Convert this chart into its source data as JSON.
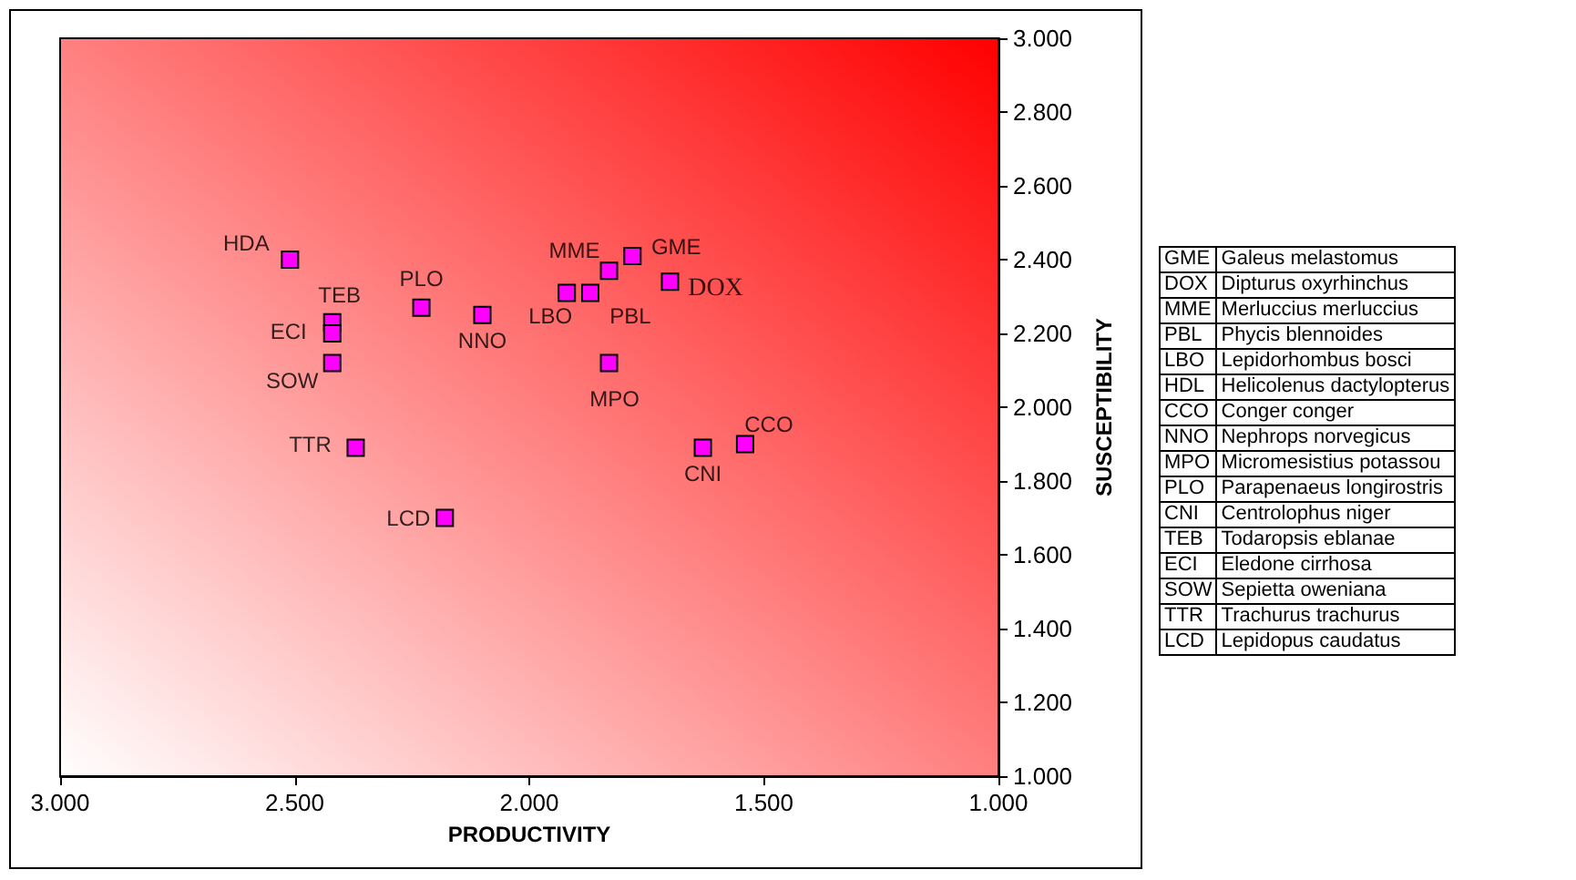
{
  "chart_data": [
    {
      "type": "scatter",
      "xlabel": "PRODUCTIVITY",
      "ylabel": "SUSCEPTIBILITY",
      "marker": "square",
      "x": [
        2.51,
        2.42,
        2.42,
        2.42,
        2.37,
        2.18,
        2.23,
        2.1,
        1.92,
        1.87,
        1.83,
        1.78,
        1.7,
        1.83,
        1.63,
        1.54
      ],
      "series": [
        {
          "color": "#ff00ff",
          "values": [
            2.4,
            2.23,
            2.2,
            2.12,
            1.89,
            1.7,
            2.27,
            2.25,
            2.31,
            2.31,
            2.37,
            2.41,
            2.34,
            2.12,
            1.89,
            1.9
          ]
        }
      ],
      "xlim": [
        3,
        1
      ],
      "ylim": [
        1,
        3
      ],
      "xticks": [
        {
          "value": 3,
          "label": "3.000"
        },
        {
          "value": 2.5,
          "label": "2.500"
        },
        {
          "value": 2,
          "label": "2.000"
        },
        {
          "value": 1.5,
          "label": "1.500"
        },
        {
          "value": 1,
          "label": "1.000"
        }
      ],
      "yticks": [
        {
          "value": 1,
          "label": "1.000"
        },
        {
          "value": 1.2,
          "label": "1.200"
        },
        {
          "value": 1.4,
          "label": "1.400"
        },
        {
          "value": 1.6,
          "label": "1.600"
        },
        {
          "value": 1.8,
          "label": "1.800"
        },
        {
          "value": 2,
          "label": "2.000"
        },
        {
          "value": 2.2,
          "label": "2.200"
        },
        {
          "value": 2.4,
          "label": "2.400"
        },
        {
          "value": 2.6,
          "label": "2.600"
        },
        {
          "value": 2.8,
          "label": "2.800"
        },
        {
          "value": 3,
          "label": "3.000"
        }
      ],
      "annotations": [
        {
          "text": "HDA",
          "x": 2.51,
          "y": 2.4
        },
        {
          "text": "TEB",
          "x": 2.42,
          "y": 2.23
        },
        {
          "text": "ECI",
          "x": 2.42,
          "y": 2.2
        },
        {
          "text": "SOW",
          "x": 2.42,
          "y": 2.12
        },
        {
          "text": "TTR",
          "x": 2.37,
          "y": 1.89
        },
        {
          "text": "LCD",
          "x": 2.18,
          "y": 1.7
        },
        {
          "text": "PLO",
          "x": 2.23,
          "y": 2.27
        },
        {
          "text": "NNO",
          "x": 2.1,
          "y": 2.25
        },
        {
          "text": "LBO",
          "x": 1.92,
          "y": 2.31
        },
        {
          "text": "PBL",
          "x": 1.87,
          "y": 2.31
        },
        {
          "text": "MME",
          "x": 1.83,
          "y": 2.37
        },
        {
          "text": "GME",
          "x": 1.78,
          "y": 2.41
        },
        {
          "text": "DOX",
          "x": 1.7,
          "y": 2.34
        },
        {
          "text": "MPO",
          "x": 1.83,
          "y": 2.12
        },
        {
          "text": "CNI",
          "x": 1.63,
          "y": 1.89
        },
        {
          "text": "CCO",
          "x": 1.54,
          "y": 1.9
        }
      ]
    },
    {
      "type": "other",
      "annotations": [
        "GME",
        "Galeus melastomus",
        "DOX",
        "Dipturus oxyrhinchus",
        "MME",
        "Merluccius merluccius",
        "PBL",
        "Phycis blennoides",
        "LBO",
        "Lepidorhombus bosci",
        "HDL",
        "Helicolenus dactylopterus",
        "CCO",
        "Conger conger",
        "NNO",
        "Nephrops norvegicus",
        "MPO",
        "Micromesistius potassou",
        "PLO",
        "Parapenaeus longirostris",
        "CNI",
        "Centrolophus niger",
        "TEB",
        "Todaropsis eblanae",
        "ECI",
        "Eledone cirrhosa",
        "SOW",
        "Sepietta oweniana",
        "TTR",
        "Trachurus trachurus",
        "LCD",
        "Lepidopus caudatus"
      ]
    }
  ]
}
